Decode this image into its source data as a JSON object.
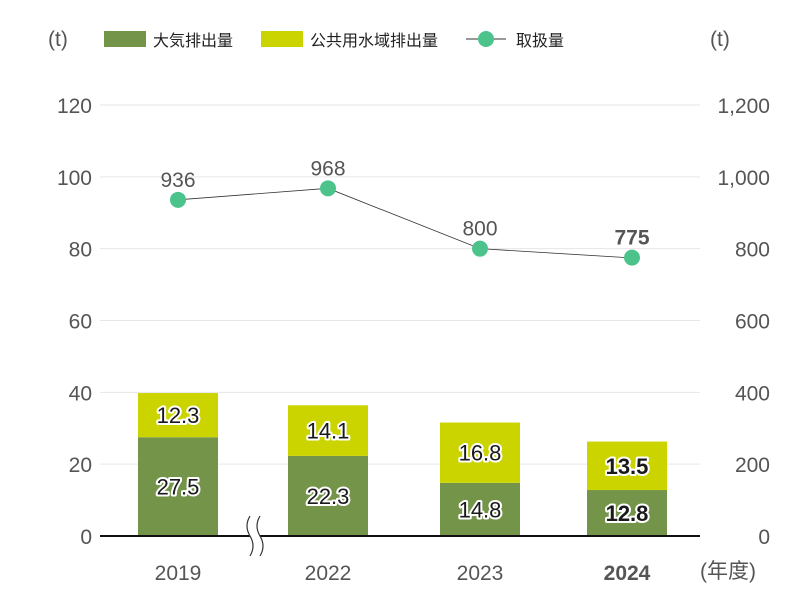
{
  "chart_data": {
    "type": "bar",
    "categories": [
      "2019",
      "2022",
      "2023",
      "2024"
    ],
    "highlight_category": "2024",
    "series": [
      {
        "name": "大気排出量",
        "axis": "left",
        "kind": "stacked-bar",
        "color": "#739449",
        "values": [
          27.5,
          22.3,
          14.8,
          12.8
        ]
      },
      {
        "name": "公共用水域排出量",
        "axis": "left",
        "kind": "stacked-bar",
        "color": "#ccd400",
        "values": [
          12.3,
          14.1,
          16.8,
          13.5
        ]
      },
      {
        "name": "取扱量",
        "axis": "right",
        "kind": "line",
        "color": "#4cc38a",
        "values": [
          936,
          968,
          800,
          775
        ]
      }
    ],
    "left_axis": {
      "unit": "(t)",
      "ylim": [
        0,
        120
      ],
      "ticks": [
        "0",
        "20",
        "40",
        "60",
        "80",
        "100",
        "120"
      ]
    },
    "right_axis": {
      "unit": "(t)",
      "ylim": [
        0,
        1200
      ],
      "ticks": [
        "0",
        "200",
        "400",
        "600",
        "800",
        "1,000",
        "1,200"
      ]
    },
    "xlabel": "(年度)",
    "axis_break_between": [
      "2019",
      "2022"
    ],
    "grid": true,
    "legend": "top"
  }
}
